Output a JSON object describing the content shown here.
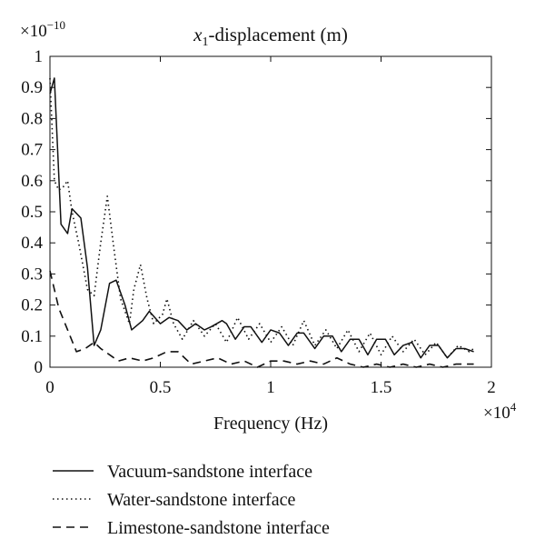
{
  "chart_data": {
    "type": "line",
    "title": "x1-displacement (m)",
    "title_parts": {
      "var": "x",
      "sub": "1",
      "rest": "-displacement (m)"
    },
    "y_multiplier": {
      "base": "×10",
      "exp": "−10"
    },
    "x_multiplier": {
      "base": "×10",
      "exp": "4"
    },
    "xlabel": "Frequency (Hz)",
    "ylabel": "",
    "xlim": [
      0,
      2
    ],
    "ylim": [
      0,
      1
    ],
    "x_ticks": [
      0,
      0.5,
      1,
      1.5,
      2
    ],
    "x_tick_labels": [
      "0",
      "0.5",
      "1",
      "1.5",
      "2"
    ],
    "y_ticks": [
      0,
      0.1,
      0.2,
      0.3,
      0.4,
      0.5,
      0.6,
      0.7,
      0.8,
      0.9,
      1
    ],
    "y_tick_labels": [
      "0",
      "0.1",
      "0.2",
      "0.3",
      "0.4",
      "0.5",
      "0.6",
      "0.7",
      "0.8",
      "0.9",
      "1"
    ],
    "grid": false,
    "legend_position": "below",
    "series": [
      {
        "name": "Vacuum-sandstone interface",
        "style": "solid",
        "x": [
          0.0,
          0.02,
          0.05,
          0.08,
          0.1,
          0.14,
          0.17,
          0.2,
          0.23,
          0.27,
          0.3,
          0.34,
          0.37,
          0.42,
          0.45,
          0.5,
          0.54,
          0.58,
          0.62,
          0.66,
          0.7,
          0.73,
          0.78,
          0.8,
          0.84,
          0.88,
          0.91,
          0.96,
          1.0,
          1.04,
          1.08,
          1.12,
          1.15,
          1.2,
          1.24,
          1.28,
          1.32,
          1.36,
          1.4,
          1.44,
          1.48,
          1.52,
          1.56,
          1.6,
          1.64,
          1.68,
          1.72,
          1.76,
          1.8,
          1.84,
          1.88,
          1.92
        ],
        "y": [
          0.88,
          0.93,
          0.46,
          0.43,
          0.51,
          0.48,
          0.32,
          0.07,
          0.12,
          0.27,
          0.28,
          0.2,
          0.12,
          0.15,
          0.18,
          0.14,
          0.16,
          0.15,
          0.12,
          0.14,
          0.12,
          0.13,
          0.15,
          0.14,
          0.09,
          0.13,
          0.13,
          0.08,
          0.12,
          0.11,
          0.07,
          0.11,
          0.11,
          0.06,
          0.1,
          0.1,
          0.05,
          0.09,
          0.09,
          0.04,
          0.09,
          0.09,
          0.04,
          0.07,
          0.08,
          0.03,
          0.07,
          0.07,
          0.03,
          0.06,
          0.06,
          0.05
        ]
      },
      {
        "name": "Water-sandstone interface",
        "style": "dotted",
        "x": [
          0.0,
          0.02,
          0.04,
          0.06,
          0.08,
          0.1,
          0.13,
          0.17,
          0.2,
          0.23,
          0.26,
          0.29,
          0.32,
          0.36,
          0.38,
          0.41,
          0.44,
          0.47,
          0.51,
          0.53,
          0.56,
          0.6,
          0.65,
          0.7,
          0.75,
          0.8,
          0.85,
          0.9,
          0.95,
          1.0,
          1.05,
          1.1,
          1.15,
          1.2,
          1.25,
          1.3,
          1.35,
          1.4,
          1.45,
          1.5,
          1.55,
          1.6,
          1.65,
          1.7,
          1.75,
          1.8,
          1.85,
          1.9,
          1.92
        ],
        "y": [
          0.93,
          0.6,
          0.57,
          0.58,
          0.6,
          0.5,
          0.4,
          0.25,
          0.23,
          0.4,
          0.55,
          0.38,
          0.22,
          0.14,
          0.25,
          0.33,
          0.22,
          0.14,
          0.17,
          0.22,
          0.14,
          0.09,
          0.15,
          0.1,
          0.14,
          0.08,
          0.16,
          0.09,
          0.14,
          0.08,
          0.13,
          0.07,
          0.15,
          0.07,
          0.12,
          0.06,
          0.12,
          0.05,
          0.11,
          0.04,
          0.1,
          0.05,
          0.09,
          0.04,
          0.08,
          0.03,
          0.07,
          0.05,
          0.06
        ]
      },
      {
        "name": "Limestone-sandstone interface",
        "style": "dashed",
        "x": [
          0.0,
          0.04,
          0.08,
          0.12,
          0.16,
          0.2,
          0.23,
          0.27,
          0.31,
          0.36,
          0.42,
          0.47,
          0.53,
          0.58,
          0.64,
          0.7,
          0.76,
          0.82,
          0.88,
          0.94,
          1.0,
          1.06,
          1.12,
          1.18,
          1.24,
          1.3,
          1.36,
          1.42,
          1.48,
          1.54,
          1.6,
          1.66,
          1.72,
          1.78,
          1.84,
          1.92
        ],
        "y": [
          0.31,
          0.19,
          0.12,
          0.05,
          0.06,
          0.08,
          0.06,
          0.04,
          0.02,
          0.03,
          0.02,
          0.03,
          0.05,
          0.05,
          0.01,
          0.02,
          0.03,
          0.01,
          0.02,
          0.0,
          0.02,
          0.02,
          0.01,
          0.02,
          0.01,
          0.03,
          0.01,
          0.0,
          0.01,
          0.0,
          0.01,
          0.0,
          0.01,
          0.0,
          0.01,
          0.01
        ]
      }
    ]
  }
}
